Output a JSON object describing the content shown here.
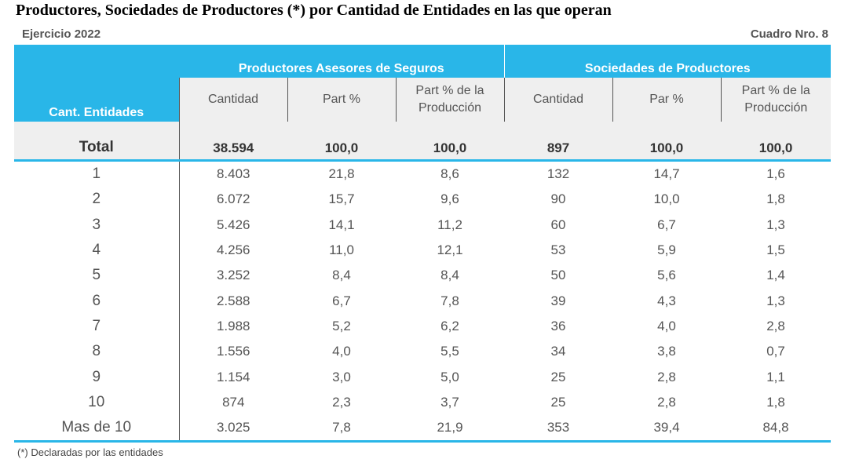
{
  "title": "Productores, Sociedades de Productores (*) por Cantidad de Entidades en las que operan",
  "ejercicio": "Ejercicio 2022",
  "cuadro": "Cuadro Nro. 8",
  "headers": {
    "cant_entidades": "Cant. Entidades",
    "group1": "Productores Asesores de Seguros",
    "group2": "Sociedades de Productores",
    "g1_cols": [
      "Cantidad",
      "Part %",
      "Part % de la Producción"
    ],
    "g2_cols": [
      "Cantidad",
      "Par %",
      "Part % de la Producción"
    ]
  },
  "total": {
    "label": "Total",
    "values": [
      "38.594",
      "100,0",
      "100,0",
      "897",
      "100,0",
      "100,0"
    ]
  },
  "rows": [
    {
      "label": "1",
      "values": [
        "8.403",
        "21,8",
        "8,6",
        "132",
        "14,7",
        "1,6"
      ]
    },
    {
      "label": "2",
      "values": [
        "6.072",
        "15,7",
        "9,6",
        "90",
        "10,0",
        "1,8"
      ]
    },
    {
      "label": "3",
      "values": [
        "5.426",
        "14,1",
        "11,2",
        "60",
        "6,7",
        "1,3"
      ]
    },
    {
      "label": "4",
      "values": [
        "4.256",
        "11,0",
        "12,1",
        "53",
        "5,9",
        "1,5"
      ]
    },
    {
      "label": "5",
      "values": [
        "3.252",
        "8,4",
        "8,4",
        "50",
        "5,6",
        "1,4"
      ]
    },
    {
      "label": "6",
      "values": [
        "2.588",
        "6,7",
        "7,8",
        "39",
        "4,3",
        "1,3"
      ]
    },
    {
      "label": "7",
      "values": [
        "1.988",
        "5,2",
        "6,2",
        "36",
        "4,0",
        "2,8"
      ]
    },
    {
      "label": "8",
      "values": [
        "1.556",
        "4,0",
        "5,5",
        "34",
        "3,8",
        "0,7"
      ]
    },
    {
      "label": "9",
      "values": [
        "1.154",
        "3,0",
        "5,0",
        "25",
        "2,8",
        "1,1"
      ]
    },
    {
      "label": "10",
      "values": [
        "874",
        "2,3",
        "3,7",
        "25",
        "2,8",
        "1,8"
      ]
    },
    {
      "label": "Mas de 10",
      "values": [
        "3.025",
        "7,8",
        "21,9",
        "353",
        "39,4",
        "84,8"
      ]
    }
  ],
  "footnote": "(*) Declaradas por las entidades",
  "colors": {
    "accent": "#29b6e8",
    "header_bg": "#efefef"
  }
}
